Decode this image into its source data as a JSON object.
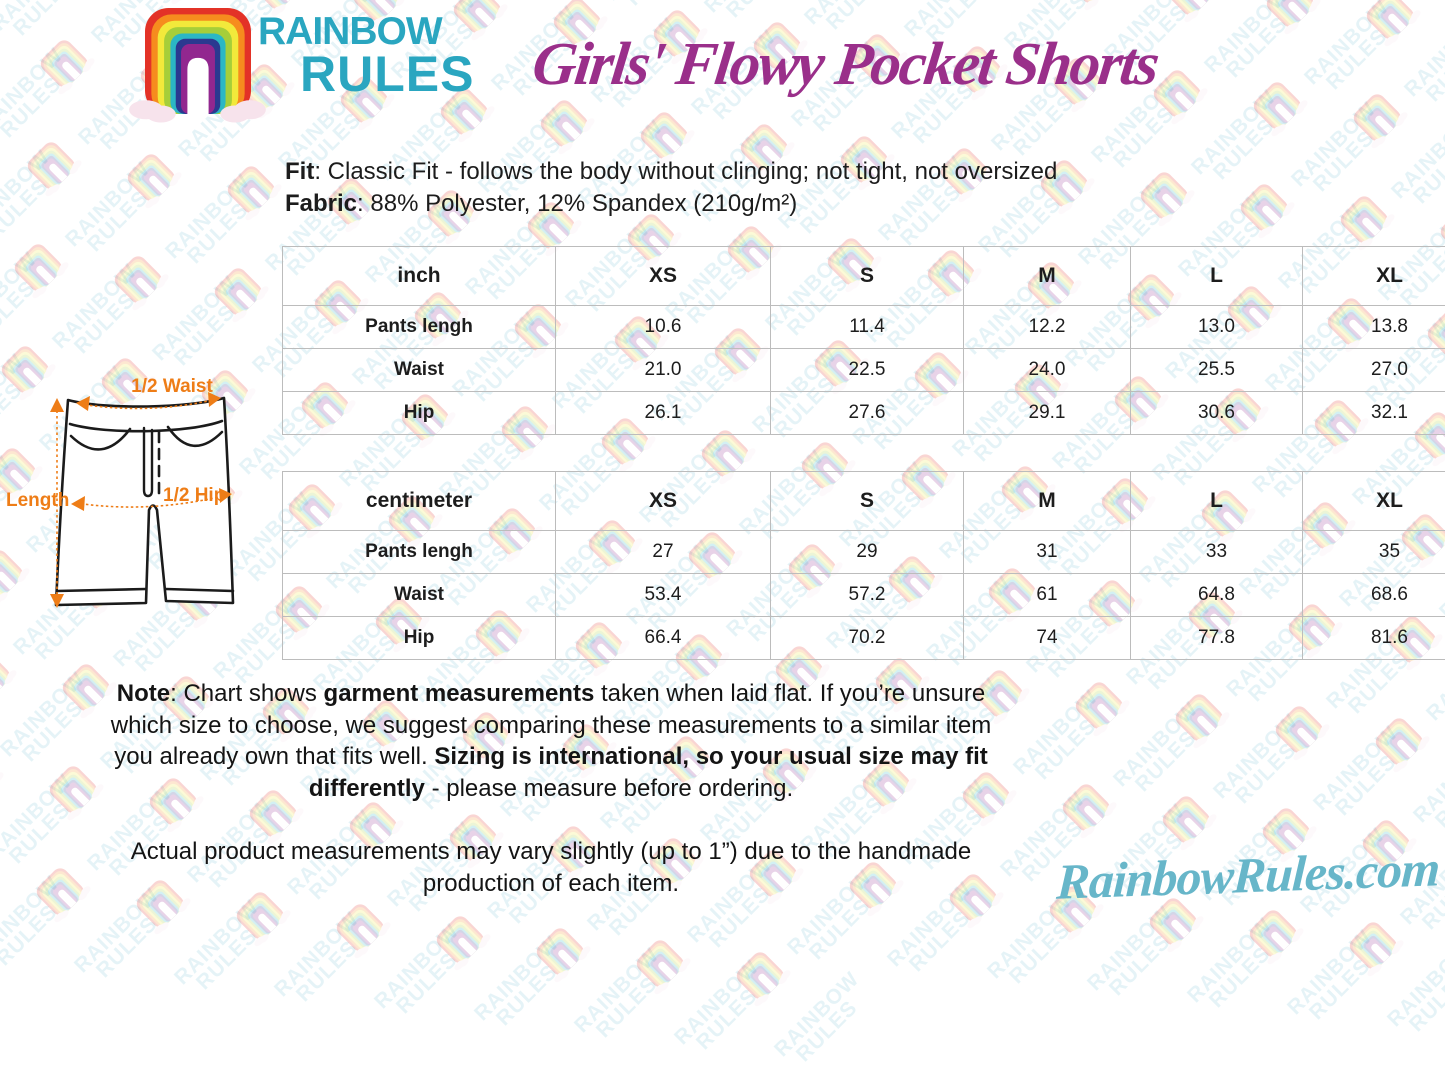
{
  "brand": {
    "wordmark_line1": "RAINBOW",
    "wordmark_line2": "RULES",
    "website": "RainbowRules.com"
  },
  "title": "Girls' Flowy Pocket Shorts",
  "product_info": {
    "fit": [
      {
        "t": "Fit",
        "b": true
      },
      {
        "t": ": Classic Fit - follows the body without clinging; not tight, not oversized",
        "b": false
      }
    ],
    "fabric": [
      {
        "t": "Fabric",
        "b": true
      },
      {
        "t": ": 88% Polyester, 12% Spandex (210g/m²)",
        "b": false
      }
    ]
  },
  "size_tables": [
    {
      "unit": "inch",
      "columns": [
        "XS",
        "S",
        "M",
        "L",
        "XL"
      ],
      "rows": [
        {
          "label": "Pants lengh",
          "values": [
            "10.6",
            "11.4",
            "12.2",
            "13.0",
            "13.8"
          ]
        },
        {
          "label": "Waist",
          "values": [
            "21.0",
            "22.5",
            "24.0",
            "25.5",
            "27.0"
          ]
        },
        {
          "label": "Hip",
          "values": [
            "26.1",
            "27.6",
            "29.1",
            "30.6",
            "32.1"
          ]
        }
      ]
    },
    {
      "unit": "centimeter",
      "columns": [
        "XS",
        "S",
        "M",
        "L",
        "XL"
      ],
      "rows": [
        {
          "label": "Pants lengh",
          "values": [
            "27",
            "29",
            "31",
            "33",
            "35"
          ]
        },
        {
          "label": "Waist",
          "values": [
            "53.4",
            "57.2",
            "61",
            "64.8",
            "68.6"
          ]
        },
        {
          "label": "Hip",
          "values": [
            "66.4",
            "70.2",
            "74",
            "77.8",
            "81.6"
          ]
        }
      ]
    }
  ],
  "diagram": {
    "labels": {
      "waist": "1/2 Waist",
      "length": "Length",
      "hip": "1/2 Hip"
    }
  },
  "notes": {
    "main": [
      {
        "t": "Note",
        "b": true
      },
      {
        "t": ": Chart shows ",
        "b": false
      },
      {
        "t": "garment measurements",
        "b": true
      },
      {
        "t": " taken when laid flat. If you’re unsure which size to choose, we suggest comparing these measurements to a similar item you already own that fits well. ",
        "b": false
      },
      {
        "t": "Sizing is international, so your usual size may fit differently",
        "b": true
      },
      {
        "t": " - please measure before ordering.",
        "b": false
      }
    ],
    "secondary": "Actual product measurements may vary slightly (up to 1”) due to the handmade production of each item."
  },
  "colors": {
    "title_purple": "#9a2f8a",
    "brand_teal": "#2aa6c0",
    "website_teal": "#67b6c9",
    "diagram_orange": "#ee7d17",
    "table_border": "#bcbcbc",
    "rainbow": [
      "#e33227",
      "#f68c1e",
      "#f2e93b",
      "#a6ce39",
      "#2bb7c4",
      "#2b3990",
      "#92278f"
    ],
    "cloud_pink": "#f7e3ec"
  }
}
